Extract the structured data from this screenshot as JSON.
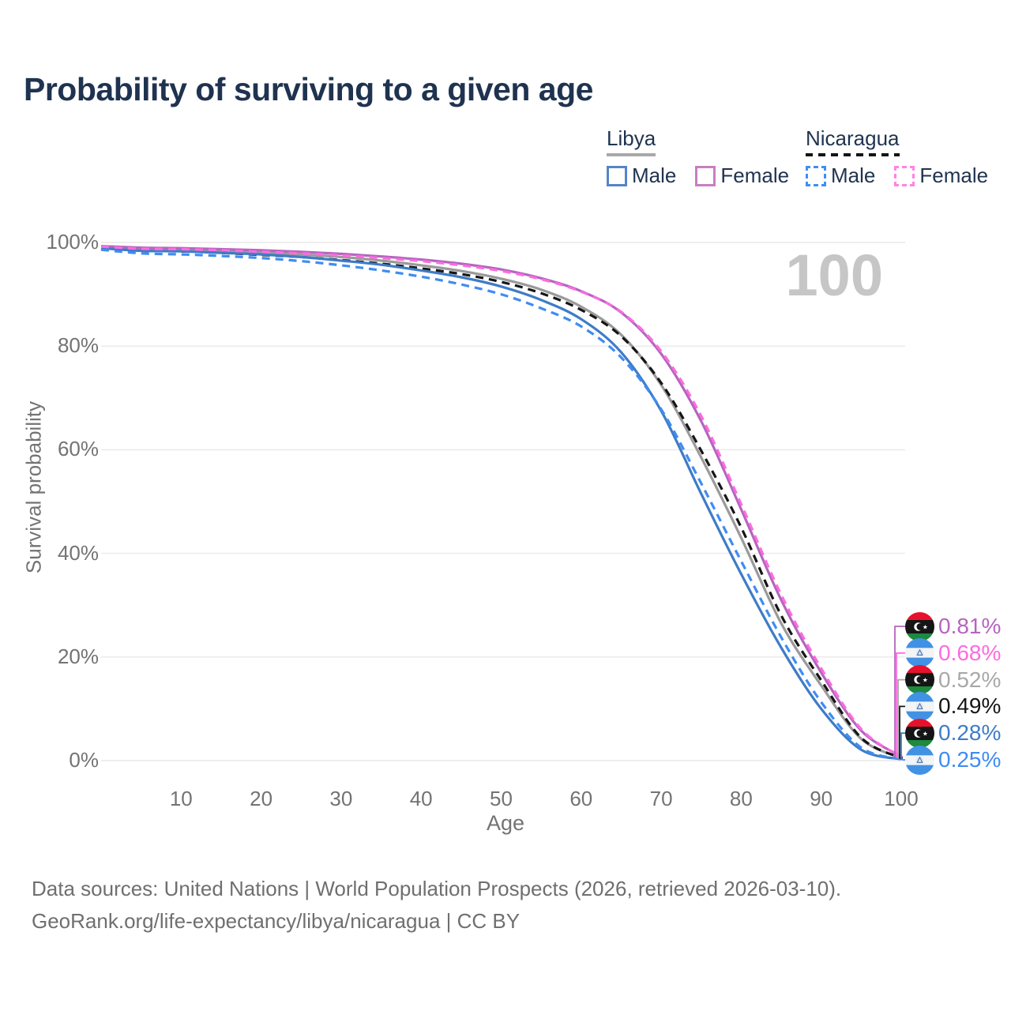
{
  "title": "Probability of surviving to a given age",
  "watermark_age": "100",
  "legend": {
    "groups": [
      {
        "country": "Libya",
        "line_style": "solid",
        "underline_color": "#a9a9a9",
        "items": [
          {
            "label": "Male",
            "color": "#5585c8",
            "style": "solid"
          },
          {
            "label": "Female",
            "color": "#c77fc0",
            "style": "solid"
          }
        ]
      },
      {
        "country": "Nicaragua",
        "line_style": "dashed",
        "underline_color": "#141414",
        "items": [
          {
            "label": "Male",
            "color": "#3f8ef5",
            "style": "dashed"
          },
          {
            "label": "Female",
            "color": "#ff84e2",
            "style": "dashed"
          }
        ]
      }
    ]
  },
  "chart_data": {
    "type": "line",
    "title": "Probability of surviving to a given age",
    "x_label": "Age",
    "y_label": "Survival probability",
    "x_range": [
      0,
      100
    ],
    "y_range_percent": [
      0,
      100
    ],
    "grid": "horizontal-only",
    "x_ticks": [
      10,
      20,
      30,
      40,
      50,
      60,
      70,
      80,
      90,
      100
    ],
    "y_ticks": [
      {
        "label": "100%",
        "value": 100
      },
      {
        "label": "80%",
        "value": 80
      },
      {
        "label": "60%",
        "value": 60
      },
      {
        "label": "40%",
        "value": 40
      },
      {
        "label": "20%",
        "value": 20
      },
      {
        "label": "0%",
        "value": 0
      }
    ],
    "ages": [
      0,
      5,
      10,
      15,
      20,
      25,
      30,
      35,
      40,
      45,
      50,
      55,
      60,
      65,
      70,
      75,
      80,
      85,
      90,
      95,
      100
    ],
    "series": [
      {
        "name": "Libya",
        "country": "Libya",
        "sex": "both",
        "color": "#9a9a9a",
        "dashed": false,
        "values": [
          99.1,
          98.7,
          98.6,
          98.4,
          98.1,
          97.7,
          97.2,
          96.5,
          95.6,
          94.5,
          93.0,
          90.9,
          87.6,
          82.2,
          72.5,
          58.5,
          43.0,
          26.5,
          14.5,
          4.2,
          0.52
        ]
      },
      {
        "name": "Nicaragua",
        "country": "Nicaragua",
        "sex": "both",
        "color": "#151515",
        "dashed": true,
        "values": [
          98.9,
          98.4,
          98.3,
          98.0,
          97.6,
          97.2,
          96.6,
          95.9,
          95.0,
          93.9,
          92.4,
          90.2,
          87.0,
          81.9,
          72.9,
          59.8,
          45.0,
          28.0,
          15.5,
          4.4,
          0.49
        ]
      },
      {
        "name": "Libya Male",
        "country": "Libya",
        "sex": "male",
        "color": "#3e7cc7",
        "dashed": false,
        "values": [
          98.9,
          98.4,
          98.3,
          98.0,
          97.7,
          97.2,
          96.5,
          95.7,
          94.6,
          93.3,
          91.5,
          88.9,
          85.2,
          78.8,
          67.5,
          51.5,
          36.0,
          21.8,
          10.0,
          2.1,
          0.28
        ]
      },
      {
        "name": "Nicaragua Male",
        "country": "Nicaragua",
        "sex": "male",
        "color": "#3f8cf2",
        "dashed": true,
        "values": [
          98.6,
          97.9,
          97.7,
          97.4,
          97.0,
          96.4,
          95.6,
          94.6,
          93.4,
          91.9,
          90.0,
          87.3,
          83.8,
          77.8,
          67.8,
          53.5,
          38.5,
          23.8,
          11.3,
          2.5,
          0.25
        ]
      },
      {
        "name": "Libya Female",
        "country": "Libya",
        "sex": "female",
        "color": "#b565be",
        "dashed": false,
        "values": [
          99.3,
          99.0,
          98.9,
          98.7,
          98.5,
          98.2,
          97.8,
          97.3,
          96.7,
          95.9,
          94.8,
          93.1,
          90.6,
          86.5,
          78.5,
          65.5,
          48.5,
          31.0,
          17.0,
          5.8,
          0.81
        ]
      },
      {
        "name": "Nicaragua Female",
        "country": "Nicaragua",
        "sex": "female",
        "color": "#fb6ce0",
        "dashed": true,
        "values": [
          99.2,
          98.8,
          98.7,
          98.5,
          98.2,
          97.9,
          97.5,
          97.0,
          96.4,
          95.6,
          94.5,
          92.9,
          90.5,
          86.6,
          79.0,
          66.5,
          49.5,
          32.0,
          17.8,
          6.1,
          0.68
        ]
      }
    ],
    "end_labels": [
      {
        "series": "Libya Female",
        "flag": "libya",
        "value": "0.81%",
        "color": "#b565be"
      },
      {
        "series": "Nicaragua Female",
        "flag": "nicaragua",
        "value": "0.68%",
        "color": "#fb6ce0"
      },
      {
        "series": "Libya",
        "flag": "libya",
        "value": "0.52%",
        "color": "#a8a8a8"
      },
      {
        "series": "Nicaragua",
        "flag": "nicaragua",
        "value": "0.49%",
        "color": "#151515"
      },
      {
        "series": "Libya Male",
        "flag": "libya",
        "value": "0.28%",
        "color": "#3e7cc7"
      },
      {
        "series": "Nicaragua Male",
        "flag": "nicaragua",
        "value": "0.25%",
        "color": "#3f8cf2"
      }
    ]
  },
  "footer": {
    "line1": "Data sources: United Nations | World Population Prospects (2026, retrieved 2026-03-10).",
    "line2": "GeoRank.org/life-expectancy/libya/nicaragua | CC BY"
  }
}
